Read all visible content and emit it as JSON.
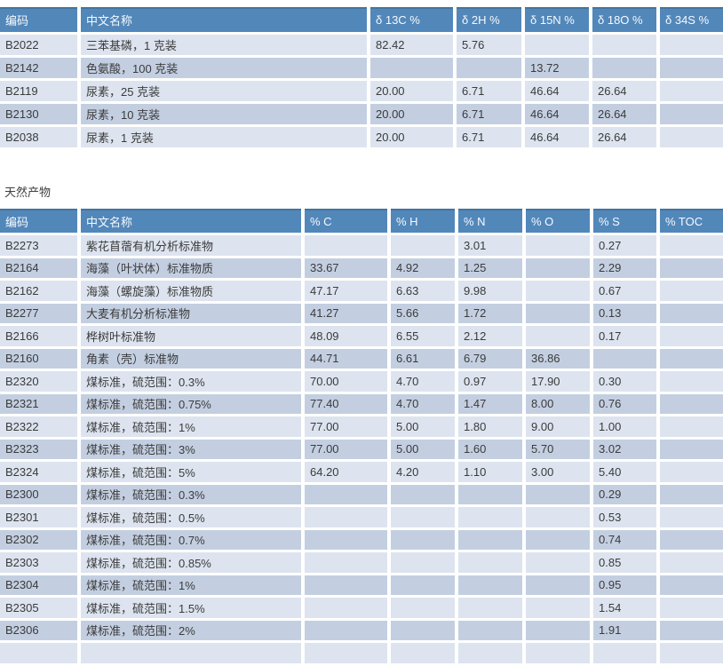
{
  "section_label": "天然产物",
  "colors": {
    "header_bg": "#5287ba",
    "header_top_border": "#44749f",
    "header_text": "#f7fafd",
    "row_light": "#dde4ef",
    "row_dark": "#c3cfe1",
    "cell_text": "#3b3b3b"
  },
  "table1": {
    "headers": [
      "编码",
      "中文名称",
      "δ 13C %",
      "δ 2H %",
      "δ 15N %",
      "δ 18O %",
      "δ 34S %"
    ],
    "rows": [
      [
        "B2022",
        "三苯基磷，1 克装",
        "82.42",
        "5.76",
        "",
        "",
        ""
      ],
      [
        "B2142",
        "色氨酸，100 克装",
        "",
        "",
        "13.72",
        "",
        ""
      ],
      [
        "B2119",
        "尿素，25 克装",
        "20.00",
        "6.71",
        "46.64",
        "26.64",
        ""
      ],
      [
        "B2130",
        "尿素，10 克装",
        "20.00",
        "6.71",
        "46.64",
        "26.64",
        ""
      ],
      [
        "B2038",
        "尿素，1 克装",
        "20.00",
        "6.71",
        "46.64",
        "26.64",
        ""
      ]
    ]
  },
  "table2": {
    "headers": [
      "编码",
      "中文名称",
      "% C",
      "% H",
      "% N",
      "% O",
      "% S",
      "% TOC"
    ],
    "rows": [
      [
        "B2273",
        "紫花苜蓿有机分析标准物",
        "",
        "",
        "3.01",
        "",
        "0.27",
        ""
      ],
      [
        "B2164",
        "海藻（叶状体）标准物质",
        "33.67",
        "4.92",
        "1.25",
        "",
        "2.29",
        ""
      ],
      [
        "B2162",
        "海藻（螺旋藻）标准物质",
        "47.17",
        "6.63",
        "9.98",
        "",
        "0.67",
        ""
      ],
      [
        "B2277",
        "大麦有机分析标准物",
        "41.27",
        "5.66",
        "1.72",
        "",
        "0.13",
        ""
      ],
      [
        "B2166",
        "桦树叶标准物",
        "48.09",
        "6.55",
        "2.12",
        "",
        "0.17",
        ""
      ],
      [
        "B2160",
        "角素（壳）标准物",
        "44.71",
        "6.61",
        "6.79",
        "36.86",
        "",
        ""
      ],
      [
        "B2320",
        "煤标准，硫范围：0.3%",
        "70.00",
        "4.70",
        "0.97",
        "17.90",
        "0.30",
        ""
      ],
      [
        "B2321",
        "煤标准，硫范围：0.75%",
        "77.40",
        "4.70",
        "1.47",
        "8.00",
        "0.76",
        ""
      ],
      [
        "B2322",
        "煤标准，硫范围：1%",
        "77.00",
        "5.00",
        "1.80",
        "9.00",
        "1.00",
        ""
      ],
      [
        "B2323",
        "煤标准，硫范围：3%",
        "77.00",
        "5.00",
        "1.60",
        "5.70",
        "3.02",
        ""
      ],
      [
        "B2324",
        "煤标准，硫范围：5%",
        "64.20",
        "4.20",
        "1.10",
        "3.00",
        "5.40",
        ""
      ],
      [
        "B2300",
        "煤标准，硫范围：0.3%",
        "",
        "",
        "",
        "",
        "0.29",
        ""
      ],
      [
        "B2301",
        "煤标准，硫范围：0.5%",
        "",
        "",
        "",
        "",
        "0.53",
        ""
      ],
      [
        "B2302",
        "煤标准，硫范围：0.7%",
        "",
        "",
        "",
        "",
        "0.74",
        ""
      ],
      [
        "B2303",
        "煤标准，硫范围：0.85%",
        "",
        "",
        "",
        "",
        "0.85",
        ""
      ],
      [
        "B2304",
        "煤标准，硫范围：1%",
        "",
        "",
        "",
        "",
        "0.95",
        ""
      ],
      [
        "B2305",
        "煤标准，硫范围：1.5%",
        "",
        "",
        "",
        "",
        "1.54",
        ""
      ],
      [
        "B2306",
        "煤标准，硫范围：2%",
        "",
        "",
        "",
        "",
        "1.91",
        ""
      ]
    ],
    "partial_row_visible": true
  }
}
